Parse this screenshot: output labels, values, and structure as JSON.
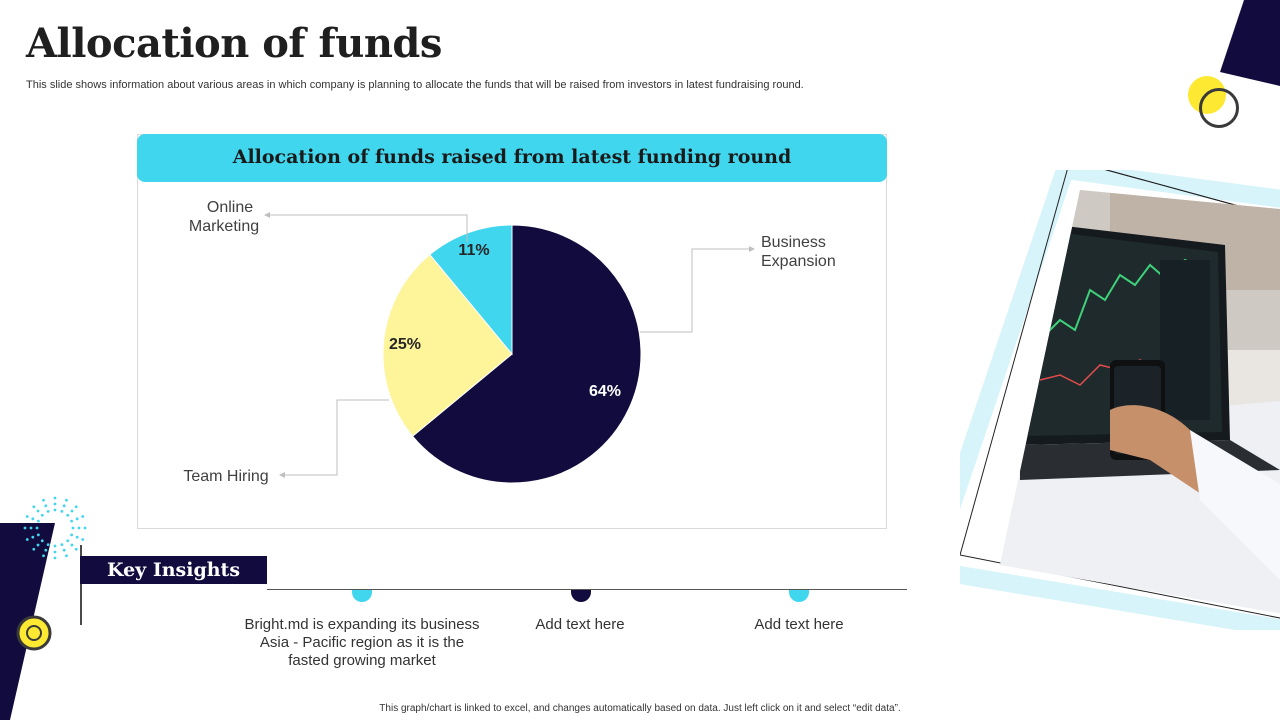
{
  "slide": {
    "title": "Allocation of funds",
    "subtitle": "This slide shows information about various areas in which company is planning to allocate the funds that will be raised from investors in latest fundraising round."
  },
  "colors": {
    "accent_cyan": "#40d6ee",
    "navy": "#120c3e",
    "pale_yellow": "#fef49a",
    "yellow": "#fde932"
  },
  "chart_data": {
    "type": "pie",
    "title": "Allocation of funds raised from latest funding round",
    "unit": "%",
    "slices": [
      {
        "label": "Business Expansion",
        "value": 64,
        "display": "64%",
        "color": "#120c3e"
      },
      {
        "label": "Team Hiring",
        "value": 25,
        "display": "25%",
        "color": "#fef49a"
      },
      {
        "label": "Online Marketing",
        "value": 11,
        "display": "11%",
        "color": "#40d6ee"
      }
    ]
  },
  "key_insights": {
    "label": "Key Insights",
    "items": [
      {
        "text": "Bright.md is expanding its business Asia - Pacific region as it is the fasted growing market",
        "color": "#40d6ee"
      },
      {
        "text": "Add text here",
        "color": "#120c3e"
      },
      {
        "text": "Add text here",
        "color": "#40d6ee"
      }
    ]
  },
  "footer": {
    "note": "This graph/chart is linked to excel, and changes automatically based on data. Just left click on it and select “edit data”."
  },
  "photo": {
    "icon": "laptop-trading-chart-with-phone"
  }
}
